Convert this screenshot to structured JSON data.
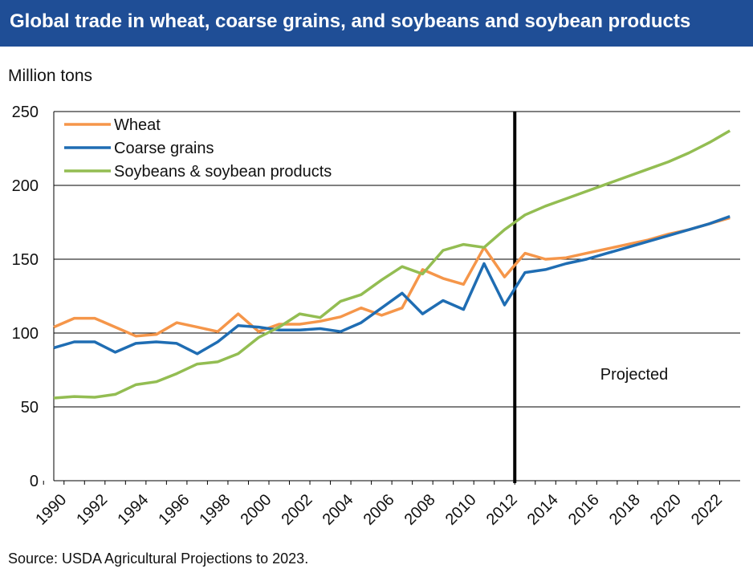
{
  "header": {
    "title": "Global trade in wheat, coarse grains, and soybeans and soybean products"
  },
  "footer": {
    "source": "Source: USDA Agricultural Projections to 2023."
  },
  "colors": {
    "title_bar": "#1f4e96",
    "wheat": "#f5964a",
    "coarse_grains": "#1f6db3",
    "soybeans": "#93bd52",
    "divider": "#000000",
    "grid": "#000000"
  },
  "chart_data": {
    "type": "line",
    "title": "Global trade in wheat, coarse grains, and soybeans and soybean products",
    "ylabel": "Million tons",
    "xlabel": "",
    "ylim": [
      0,
      250
    ],
    "yticks": [
      0,
      50,
      100,
      150,
      200,
      250
    ],
    "xticks": [
      1990,
      1992,
      1994,
      1996,
      1998,
      2000,
      2002,
      2004,
      2006,
      2008,
      2010,
      2012,
      2014,
      2016,
      2018,
      2020,
      2022
    ],
    "grid": "horizontal",
    "legend": "top-left",
    "x": [
      1990,
      1991,
      1992,
      1993,
      1994,
      1995,
      1996,
      1997,
      1998,
      1999,
      2000,
      2001,
      2002,
      2003,
      2004,
      2005,
      2006,
      2007,
      2008,
      2009,
      2010,
      2011,
      2012,
      2013,
      2014,
      2015,
      2016,
      2017,
      2018,
      2019,
      2020,
      2021,
      2022,
      2023
    ],
    "series": [
      {
        "name": "Wheat",
        "values": [
          104,
          110,
          110,
          104,
          98,
          99,
          107,
          104,
          101,
          113,
          101,
          106,
          106,
          108,
          111,
          117,
          112,
          117,
          143,
          137,
          133,
          158,
          138,
          154,
          150,
          151,
          154,
          157,
          160,
          163,
          167,
          170,
          174,
          178
        ]
      },
      {
        "name": "Coarse grains",
        "values": [
          90,
          94,
          94,
          87,
          93,
          94,
          93,
          86,
          94,
          105,
          104,
          102,
          102,
          103,
          101,
          107,
          117,
          127,
          113,
          122,
          116,
          147,
          119,
          141,
          143,
          147,
          150,
          154,
          158,
          162,
          166,
          170,
          174,
          179
        ]
      },
      {
        "name": "Soybeans & soybean products",
        "values": [
          56,
          57,
          56.5,
          58.5,
          65,
          67,
          72.5,
          79,
          80.5,
          86,
          97,
          104,
          113,
          110.5,
          121.5,
          126,
          136,
          145,
          140,
          156,
          160,
          158,
          170,
          180,
          186,
          191,
          196,
          201,
          206,
          211,
          216,
          222,
          229,
          237
        ]
      }
    ],
    "annotations": [
      {
        "text": "Projected",
        "x_divider": 2012.5
      }
    ]
  }
}
